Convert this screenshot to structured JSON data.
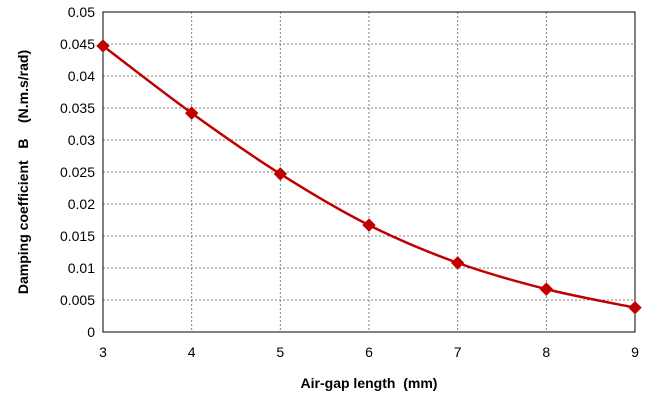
{
  "chart_data": {
    "type": "line",
    "title": "",
    "xlabel": "Air-gap length  (mm)",
    "ylabel": "Damping coefficient   B    (N.m.s/rad)",
    "xlim": [
      3,
      9
    ],
    "ylim": [
      0,
      0.05
    ],
    "x_ticks": [
      "3",
      "4",
      "5",
      "6",
      "7",
      "8",
      "9"
    ],
    "y_ticks": [
      "0",
      "0.005",
      "0.01",
      "0.015",
      "0.02",
      "0.025",
      "0.03",
      "0.035",
      "0.04",
      "0.045",
      "0.05"
    ],
    "grid": true,
    "legend": "none",
    "series": [
      {
        "x": [
          3,
          4,
          5,
          6,
          7,
          8,
          9
        ],
        "values": [
          0.0447,
          0.0342,
          0.0247,
          0.0167,
          0.0108,
          0.0067,
          0.0038
        ],
        "color": "#c00000",
        "marker": "diamond"
      }
    ]
  }
}
